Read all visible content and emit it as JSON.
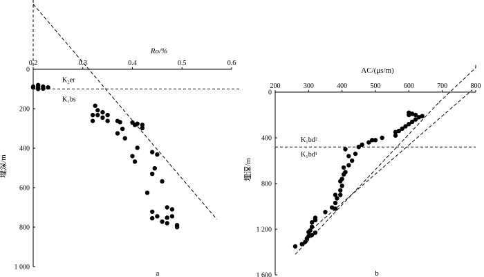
{
  "chart_data": [
    {
      "type": "scatter",
      "panel_label": "a",
      "xlabel": "Ro/%",
      "ylabel": "埋深/m",
      "xlim": [
        0.2,
        0.6
      ],
      "ylim": [
        1000,
        0
      ],
      "x_axis_position": "top",
      "x_ticks": [
        "0.2",
        "0.3",
        "0.4",
        "0.5",
        "0.6"
      ],
      "y_ticks": [
        "0",
        "200",
        "400",
        "600",
        "800",
        "1 000"
      ],
      "grid": false,
      "points": [
        [
          0.2,
          88
        ],
        [
          0.2,
          92
        ],
        [
          0.21,
          80
        ],
        [
          0.21,
          90
        ],
        [
          0.21,
          100
        ],
        [
          0.22,
          88
        ],
        [
          0.22,
          98
        ],
        [
          0.23,
          92
        ],
        [
          0.32,
          232
        ],
        [
          0.32,
          262
        ],
        [
          0.325,
          185
        ],
        [
          0.33,
          208
        ],
        [
          0.33,
          232
        ],
        [
          0.34,
          218
        ],
        [
          0.34,
          245
        ],
        [
          0.35,
          232
        ],
        [
          0.35,
          262
        ],
        [
          0.37,
          262
        ],
        [
          0.375,
          268
        ],
        [
          0.37,
          325
        ],
        [
          0.38,
          302
        ],
        [
          0.385,
          350
        ],
        [
          0.4,
          270
        ],
        [
          0.405,
          282
        ],
        [
          0.41,
          276
        ],
        [
          0.42,
          282
        ],
        [
          0.42,
          298
        ],
        [
          0.41,
          398
        ],
        [
          0.4,
          440
        ],
        [
          0.405,
          468
        ],
        [
          0.44,
          420
        ],
        [
          0.445,
          502
        ],
        [
          0.44,
          530
        ],
        [
          0.46,
          568
        ],
        [
          0.45,
          432
        ],
        [
          0.43,
          626
        ],
        [
          0.44,
          722
        ],
        [
          0.45,
          745
        ],
        [
          0.44,
          755
        ],
        [
          0.46,
          772
        ],
        [
          0.47,
          752
        ],
        [
          0.48,
          745
        ],
        [
          0.48,
          710
        ],
        [
          0.47,
          700
        ],
        [
          0.49,
          790
        ],
        [
          0.49,
          800
        ],
        [
          0.47,
          780
        ]
      ],
      "trend_line": [
        [
          0.2,
          -330
        ],
        [
          0.57,
          760
        ]
      ],
      "boundary": {
        "depth": 100,
        "upper_label": "K₂er",
        "lower_label": "K₁bs"
      }
    },
    {
      "type": "scatter",
      "panel_label": "b",
      "xlabel": "AC/(μs/m)",
      "ylabel": "埋深/m",
      "xlim": [
        200,
        800
      ],
      "ylim": [
        1600,
        0
      ],
      "x_axis_position": "top",
      "x_ticks": [
        "200",
        "300",
        "400",
        "500",
        "600",
        "700",
        "800"
      ],
      "y_ticks": [
        "0",
        "400",
        "800",
        "1 200",
        "1 600"
      ],
      "grid": false,
      "points": [
        [
          260,
          1350
        ],
        [
          280,
          1330
        ],
        [
          290,
          1310
        ],
        [
          295,
          1280
        ],
        [
          300,
          1260
        ],
        [
          300,
          1225
        ],
        [
          305,
          1210
        ],
        [
          310,
          1250
        ],
        [
          320,
          1230
        ],
        [
          310,
          1180
        ],
        [
          310,
          1140
        ],
        [
          320,
          1120
        ],
        [
          320,
          1100
        ],
        [
          350,
          1050
        ],
        [
          370,
          1010
        ],
        [
          380,
          1020
        ],
        [
          380,
          970
        ],
        [
          385,
          930
        ],
        [
          380,
          900
        ],
        [
          395,
          900
        ],
        [
          395,
          860
        ],
        [
          400,
          820
        ],
        [
          395,
          780
        ],
        [
          400,
          760
        ],
        [
          405,
          720
        ],
        [
          410,
          700
        ],
        [
          405,
          660
        ],
        [
          420,
          640
        ],
        [
          430,
          600
        ],
        [
          440,
          540
        ],
        [
          420,
          560
        ],
        [
          410,
          500
        ],
        [
          450,
          480
        ],
        [
          460,
          460
        ],
        [
          480,
          440
        ],
        [
          490,
          420
        ],
        [
          500,
          420
        ],
        [
          520,
          400
        ],
        [
          560,
          380
        ],
        [
          560,
          350
        ],
        [
          570,
          340
        ],
        [
          580,
          320
        ],
        [
          590,
          300
        ],
        [
          600,
          280
        ],
        [
          610,
          260
        ],
        [
          620,
          240
        ],
        [
          630,
          220
        ],
        [
          640,
          210
        ],
        [
          620,
          200
        ],
        [
          610,
          190
        ],
        [
          600,
          180
        ],
        [
          600,
          200
        ]
      ],
      "trend_line_1": [
        [
          260,
          1420
        ],
        [
          690,
          90
        ]
      ],
      "trend_line_2": [
        [
          310,
          1200
        ],
        [
          790,
          -20
        ]
      ],
      "boundary": {
        "depth": 480,
        "upper_label": "K₁bd²",
        "lower_label": "K₁bd¹"
      }
    }
  ]
}
